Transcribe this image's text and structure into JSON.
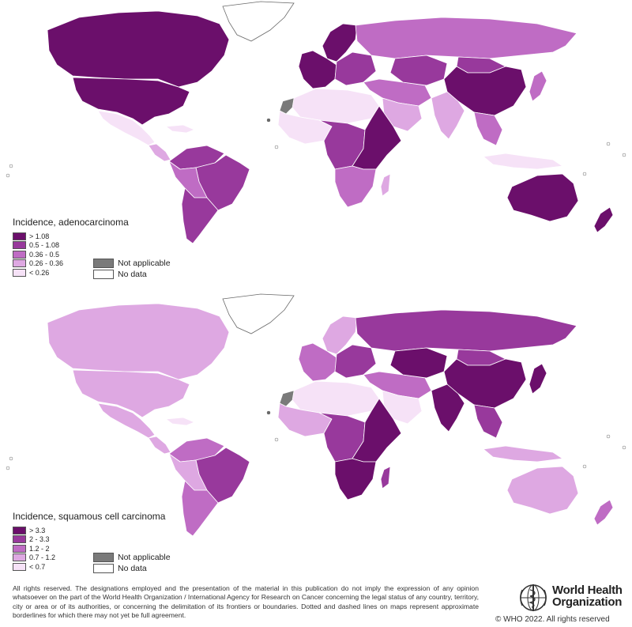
{
  "colors": {
    "class1": "#6b0f6b",
    "class2": "#98399c",
    "class3": "#bf6cc4",
    "class4": "#dea8e2",
    "class5": "#f6e2f7",
    "not_applicable": "#7a7a7a",
    "no_data": "#ffffff"
  },
  "maps": [
    {
      "legend": {
        "title": "Incidence, adenocarcinoma",
        "classes": [
          "> 1.08",
          "0.5 - 1.08",
          "0.36 - 0.5",
          "0.26 - 0.36",
          "< 0.26"
        ],
        "not_applicable": "Not applicable",
        "no_data": "No data"
      },
      "regions": {
        "canada": "class1",
        "greenland": "no_data",
        "usa": "class1",
        "mexico": "class5",
        "central_america": "class4",
        "caribbean": "class5",
        "south_america_north": "class2",
        "brazil": "class2",
        "andes": "class3",
        "southern_cone": "class2",
        "western_europe": "class1",
        "scandinavia": "class1",
        "russia": "class3",
        "eastern_europe": "class2",
        "north_africa": "class5",
        "west_africa": "class5",
        "central_africa": "class2",
        "east_africa": "class1",
        "southern_africa": "class3",
        "madagascar": "class4",
        "arabia": "class4",
        "middle_east": "class3",
        "central_asia": "class2",
        "india": "class4",
        "china": "class1",
        "mongolia": "class2",
        "southeast_asia": "class3",
        "japan": "class3",
        "indonesia": "class5",
        "australia": "class1",
        "new_zealand": "class1",
        "western_sahara": "not_applicable"
      }
    },
    {
      "legend": {
        "title": "Incidence, squamous cell carcinoma",
        "classes": [
          "> 3.3",
          "2 - 3.3",
          "1.2 - 2",
          "0.7 - 1.2",
          "< 0.7"
        ],
        "not_applicable": "Not applicable",
        "no_data": "No data"
      },
      "regions": {
        "canada": "class4",
        "greenland": "no_data",
        "usa": "class4",
        "mexico": "class4",
        "central_america": "class4",
        "caribbean": "class5",
        "south_america_north": "class3",
        "brazil": "class2",
        "andes": "class4",
        "southern_cone": "class3",
        "western_europe": "class3",
        "scandinavia": "class4",
        "russia": "class2",
        "eastern_europe": "class2",
        "north_africa": "class5",
        "west_africa": "class4",
        "central_africa": "class2",
        "east_africa": "class1",
        "southern_africa": "class1",
        "madagascar": "class2",
        "arabia": "class5",
        "middle_east": "class3",
        "central_asia": "class1",
        "india": "class1",
        "china": "class1",
        "mongolia": "class2",
        "southeast_asia": "class2",
        "japan": "class1",
        "indonesia": "class4",
        "australia": "class4",
        "new_zealand": "class3",
        "western_sahara": "not_applicable"
      }
    }
  ],
  "disclaimer": "All rights reserved. The designations employed and the presentation of the material in this publication do not imply the expression of any opinion whatsoever on the part of the World Health Organization / International Agency for Research on Cancer concerning the legal status of any country, territory, city or area or of its authorities, or concerning the delimitation of its frontiers or boundaries. Dotted and dashed lines on maps represent approximate borderlines for which there may not yet be full agreement.",
  "logo": {
    "line1": "World Health",
    "line2": "Organization",
    "icon": "who-emblem-icon"
  },
  "copyright": "© WHO 2022. All rights reserved"
}
